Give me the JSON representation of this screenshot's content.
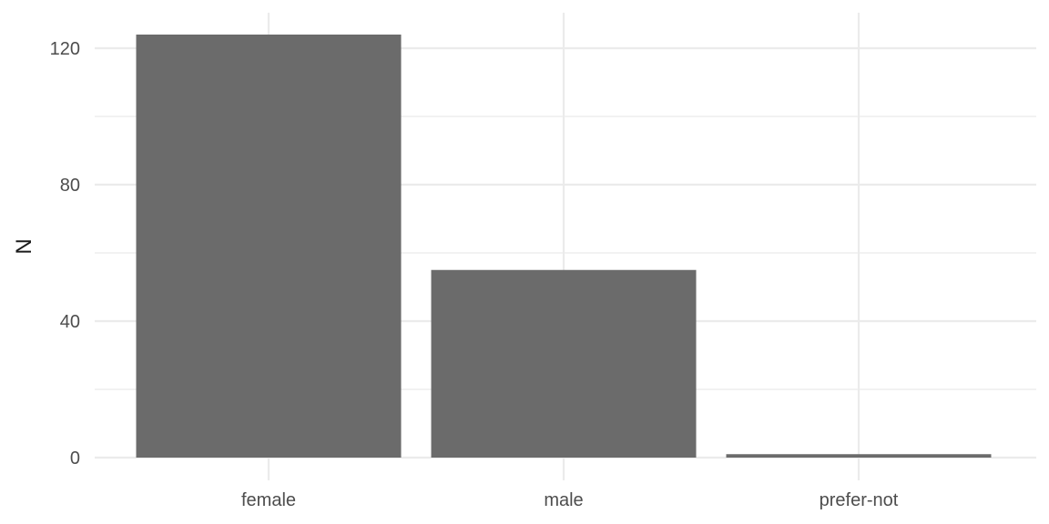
{
  "chart_data": {
    "type": "bar",
    "categories": [
      "female",
      "male",
      "prefer-not"
    ],
    "values": [
      124,
      55,
      1
    ],
    "title": "",
    "xlabel": "",
    "ylabel": "N",
    "ylim": [
      0,
      130
    ],
    "yticks": [
      0,
      40,
      80,
      120
    ],
    "y_minor_ticks": [
      20,
      60,
      100
    ],
    "grid": true,
    "bar_color": "#6b6b6b",
    "grid_color": "#ebebeb"
  }
}
